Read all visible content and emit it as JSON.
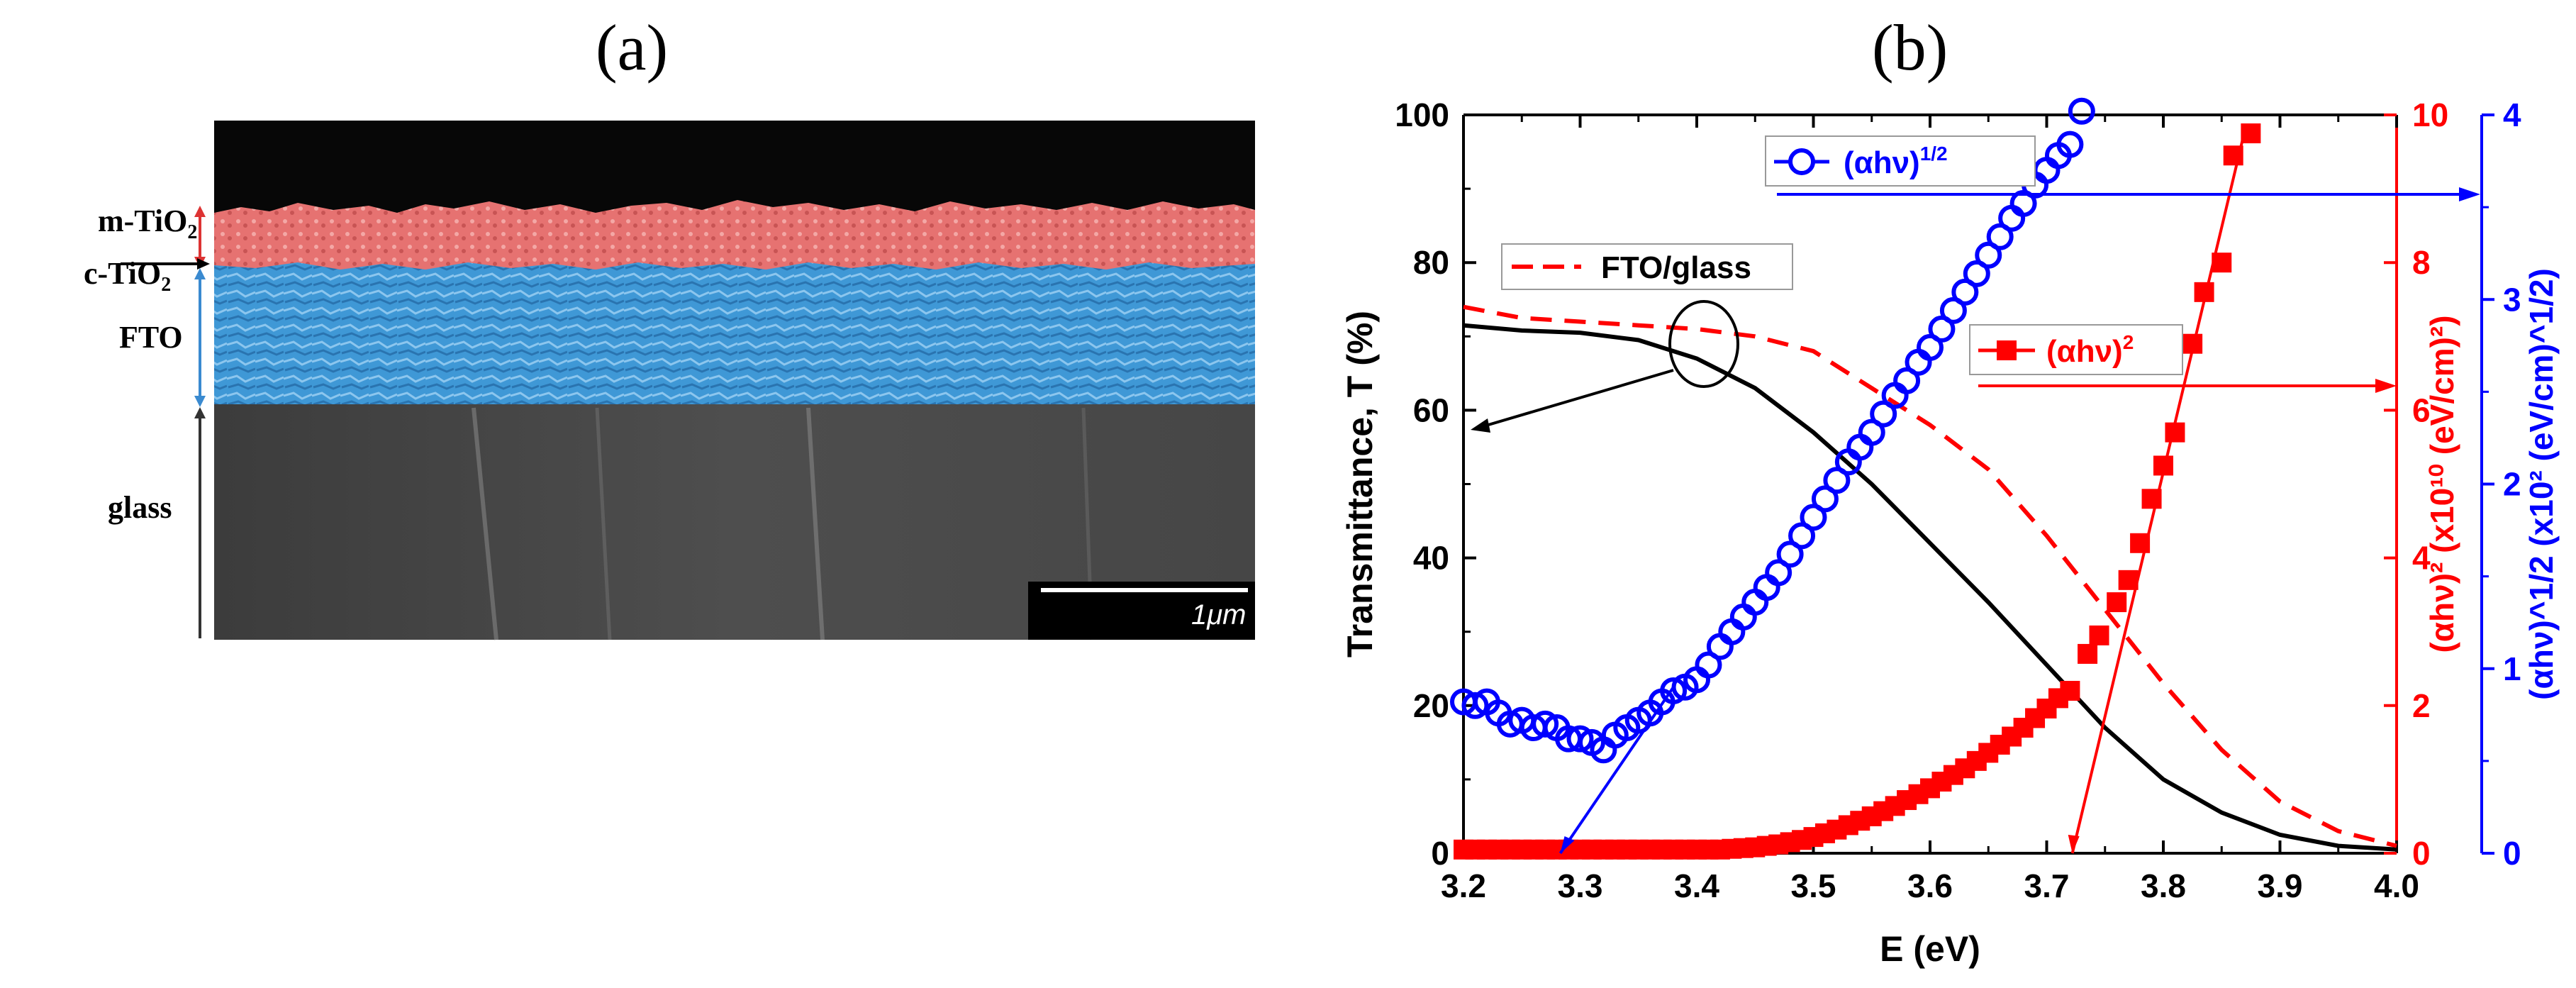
{
  "panels": {
    "a_label": "(a)",
    "b_label": "(b)"
  },
  "sem": {
    "layers": [
      "m-TiO2",
      "c-TiO2",
      "FTO",
      "glass"
    ],
    "layer_labels": {
      "m_tio2": "m-TiO",
      "c_tio2": "c-TiO",
      "sub": "2",
      "fto": "FTO",
      "glass": "glass"
    },
    "scale_bar": "1μm",
    "colors": {
      "m_tio2": "#e8706f",
      "fto": "#3e9ad8",
      "glass": "#4a4a4a",
      "top": "#080808"
    }
  },
  "chart_data": {
    "type": "line",
    "xlabel": "E  (eV)",
    "ylabel_left": "Transmittance, T  (%)",
    "ylabel_right_red": "(αhν)² (x10¹⁰ (eV/cm)²)",
    "ylabel_right_blue": "(αhν)^1/2 (x10² (eV/cm)^1/2)",
    "xlim": [
      3.2,
      4.0
    ],
    "ylim_left": [
      0,
      100
    ],
    "ylim_right_red": [
      0,
      10
    ],
    "ylim_right_blue": [
      0,
      4
    ],
    "x_ticks": [
      "3.2",
      "3.3",
      "3.4",
      "3.5",
      "3.6",
      "3.7",
      "3.8",
      "3.9",
      "4.0"
    ],
    "y_ticks_left": [
      "0",
      "20",
      "40",
      "60",
      "80",
      "100"
    ],
    "y_ticks_red": [
      "0",
      "2",
      "4",
      "6",
      "8",
      "10"
    ],
    "y_ticks_blue": [
      "0",
      "1",
      "2",
      "3",
      "4"
    ],
    "legend": {
      "fto": "FTO/glass",
      "red": "(αhν)",
      "red_sup": "2",
      "blue": "(αhν)",
      "blue_sup": "1/2"
    },
    "colors": {
      "black": "#000000",
      "red": "#ff0000",
      "blue": "#0000ff"
    },
    "series": [
      {
        "name": "Transmittance",
        "axis": "left",
        "color": "#000000",
        "style": "solid",
        "x": [
          3.2,
          3.25,
          3.3,
          3.35,
          3.4,
          3.45,
          3.5,
          3.55,
          3.6,
          3.65,
          3.7,
          3.75,
          3.8,
          3.85,
          3.9,
          3.95,
          4.0
        ],
        "y": [
          71.5,
          70.8,
          70.5,
          69.5,
          67,
          63,
          57,
          50,
          42,
          34,
          25.5,
          17,
          10,
          5.5,
          2.5,
          1,
          0.5
        ]
      },
      {
        "name": "FTO/glass",
        "axis": "left",
        "color": "#ff0000",
        "style": "dashed",
        "x": [
          3.2,
          3.25,
          3.3,
          3.35,
          3.4,
          3.45,
          3.5,
          3.55,
          3.6,
          3.65,
          3.7,
          3.75,
          3.8,
          3.85,
          3.9,
          3.95,
          4.0
        ],
        "y": [
          74,
          72.5,
          72,
          71.5,
          71,
          70,
          68,
          63,
          58,
          52,
          43,
          33,
          23,
          14,
          7,
          3,
          1
        ]
      },
      {
        "name": "(αhν)²",
        "axis": "red",
        "color": "#ff0000",
        "marker": "square",
        "x": [
          3.2,
          3.21,
          3.22,
          3.23,
          3.24,
          3.25,
          3.26,
          3.27,
          3.28,
          3.29,
          3.3,
          3.31,
          3.32,
          3.33,
          3.34,
          3.35,
          3.36,
          3.37,
          3.38,
          3.39,
          3.4,
          3.41,
          3.42,
          3.43,
          3.44,
          3.45,
          3.46,
          3.47,
          3.48,
          3.49,
          3.5,
          3.51,
          3.52,
          3.53,
          3.54,
          3.55,
          3.56,
          3.57,
          3.58,
          3.59,
          3.6,
          3.61,
          3.62,
          3.63,
          3.64,
          3.65,
          3.66,
          3.67,
          3.68,
          3.69,
          3.7,
          3.71,
          3.72,
          3.735,
          3.745,
          3.76,
          3.77,
          3.78,
          3.79,
          3.8,
          3.81,
          3.825,
          3.835,
          3.85,
          3.86,
          3.875
        ],
        "y": [
          0.05,
          0.05,
          0.05,
          0.05,
          0.05,
          0.05,
          0.05,
          0.05,
          0.05,
          0.05,
          0.05,
          0.05,
          0.05,
          0.05,
          0.05,
          0.05,
          0.05,
          0.05,
          0.05,
          0.05,
          0.05,
          0.05,
          0.05,
          0.06,
          0.07,
          0.08,
          0.1,
          0.12,
          0.15,
          0.18,
          0.22,
          0.27,
          0.32,
          0.38,
          0.44,
          0.5,
          0.57,
          0.64,
          0.72,
          0.8,
          0.88,
          0.97,
          1.06,
          1.15,
          1.25,
          1.36,
          1.47,
          1.58,
          1.7,
          1.83,
          1.96,
          2.1,
          2.2,
          2.7,
          2.95,
          3.4,
          3.7,
          4.2,
          4.8,
          5.25,
          5.7,
          6.9,
          7.6,
          8.0,
          9.45,
          9.75
        ]
      },
      {
        "name": "(αhν)^1/2",
        "axis": "blue",
        "color": "#0000ff",
        "marker": "circle",
        "x": [
          3.2,
          3.21,
          3.22,
          3.23,
          3.24,
          3.25,
          3.26,
          3.27,
          3.28,
          3.29,
          3.3,
          3.31,
          3.32,
          3.33,
          3.34,
          3.35,
          3.36,
          3.37,
          3.38,
          3.39,
          3.4,
          3.41,
          3.42,
          3.43,
          3.44,
          3.45,
          3.46,
          3.47,
          3.48,
          3.49,
          3.5,
          3.51,
          3.52,
          3.53,
          3.54,
          3.55,
          3.56,
          3.57,
          3.58,
          3.59,
          3.6,
          3.61,
          3.62,
          3.63,
          3.64,
          3.65,
          3.66,
          3.67,
          3.68,
          3.69,
          3.7,
          3.71,
          3.72,
          3.73
        ],
        "y": [
          0.82,
          0.8,
          0.82,
          0.76,
          0.7,
          0.72,
          0.68,
          0.7,
          0.68,
          0.62,
          0.62,
          0.6,
          0.56,
          0.64,
          0.68,
          0.72,
          0.76,
          0.82,
          0.88,
          0.9,
          0.94,
          1.02,
          1.12,
          1.2,
          1.28,
          1.36,
          1.44,
          1.52,
          1.62,
          1.72,
          1.82,
          1.92,
          2.02,
          2.12,
          2.2,
          2.28,
          2.38,
          2.48,
          2.56,
          2.66,
          2.74,
          2.84,
          2.94,
          3.04,
          3.14,
          3.24,
          3.34,
          3.44,
          3.52,
          3.62,
          3.7,
          3.78,
          3.84,
          4.02
        ]
      }
    ]
  }
}
